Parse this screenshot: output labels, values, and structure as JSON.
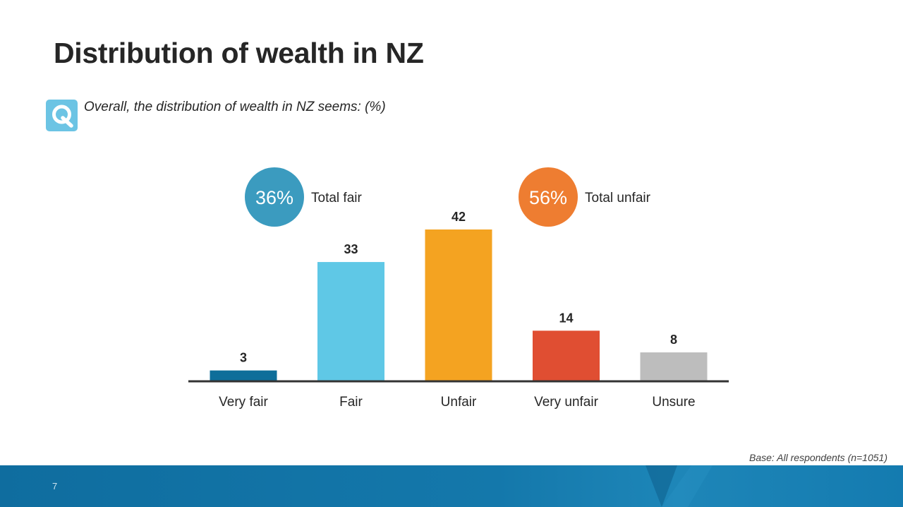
{
  "slide": {
    "title": "Distribution of wealth in NZ",
    "question_icon": "q-icon",
    "question_icon_letter": "Q",
    "question": "Overall, the distribution of wealth in NZ seems: (%)",
    "base_note": "Base: All respondents (n=1051)",
    "page_number": "7"
  },
  "summary": [
    {
      "value": "36%",
      "label": "Total fair",
      "color": "#3b9bbf"
    },
    {
      "value": "56%",
      "label": "Total unfair",
      "color": "#ee7d31"
    }
  ],
  "chart_data": {
    "type": "bar",
    "categories": [
      "Very fair",
      "Fair",
      "Unfair",
      "Very unfair",
      "Unsure"
    ],
    "values": [
      3,
      33,
      42,
      14,
      8
    ],
    "colors": [
      "#0e6e9a",
      "#5fc8e6",
      "#f4a321",
      "#e04e32",
      "#bdbdbd"
    ],
    "ylim": [
      0,
      42
    ],
    "title": "",
    "xlabel": "",
    "ylabel": "",
    "grid": false,
    "legend": "none"
  }
}
